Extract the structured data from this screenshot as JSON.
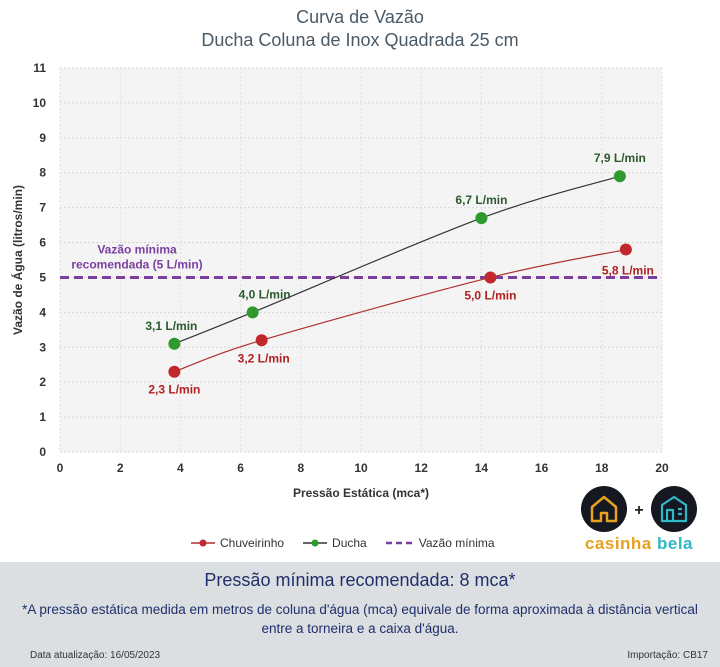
{
  "chart_data": {
    "type": "line",
    "title": "Curva de Vazão",
    "subtitle": "Ducha Coluna de Inox Quadrada 25 cm",
    "xlabel": "Pressão Estática (mca*)",
    "ylabel": "Vazão de Água (litros/min)",
    "xlim": [
      0,
      20
    ],
    "ylim": [
      0,
      11
    ],
    "x_ticks": [
      "0",
      "2",
      "4",
      "6",
      "8",
      "10",
      "12",
      "14",
      "16",
      "18",
      "20"
    ],
    "y_ticks": [
      "0",
      "1",
      "2",
      "3",
      "4",
      "5",
      "6",
      "7",
      "8",
      "9",
      "10",
      "11"
    ],
    "grid": true,
    "legend_position": "bottom",
    "series": [
      {
        "name": "Chuveirinho",
        "color": "#c0282d",
        "line_color": "#b03030",
        "points": [
          {
            "x": 3.8,
            "y": 2.3,
            "label": "2,3 L/min"
          },
          {
            "x": 6.7,
            "y": 3.2,
            "label": "3,2 L/min"
          },
          {
            "x": 14.3,
            "y": 5.0,
            "label": "5,0 L/min"
          },
          {
            "x": 18.8,
            "y": 5.8,
            "label": "5,8 L/min"
          }
        ]
      },
      {
        "name": "Ducha",
        "color": "#2e9a2e",
        "line_color": "#333333",
        "points": [
          {
            "x": 3.8,
            "y": 3.1,
            "label": "3,1 L/min"
          },
          {
            "x": 6.4,
            "y": 4.0,
            "label": "4,0 L/min"
          },
          {
            "x": 14.0,
            "y": 6.7,
            "label": "6,7 L/min"
          },
          {
            "x": 18.6,
            "y": 7.9,
            "label": "7,9 L/min"
          }
        ]
      }
    ],
    "reference_line": {
      "name": "Vazão mínima",
      "y": 5,
      "color": "#7b3fa0",
      "label_lines": [
        "Vazão mínima",
        "recomendada (5 L/min)"
      ]
    }
  },
  "logo": {
    "name": "casinha bela",
    "word1": "casinha",
    "word2": "bela",
    "word1_color": "#e8a020",
    "word2_color": "#2fb8c8"
  },
  "footer": {
    "heading": "Pressão mínima recomendada: 8 mca*",
    "note": "*A pressão estática medida em metros de coluna d'água (mca) equivale de forma aproximada à distância vertical entre a torneira e a caixa d'água.",
    "date": "Data atualização: 16/05/2023",
    "code": "Importação: CB17"
  }
}
